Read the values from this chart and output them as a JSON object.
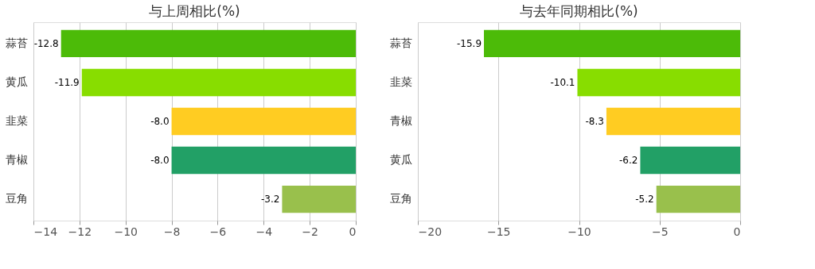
{
  "chart_data": [
    {
      "type": "bar",
      "orientation": "horizontal",
      "title": "与上周相比(%)",
      "categories": [
        "蒜苔",
        "黄瓜",
        "韭菜",
        "青椒",
        "豆角"
      ],
      "values": [
        -12.8,
        -11.9,
        -8.0,
        -8.0,
        -3.2
      ],
      "value_labels": [
        "-12.8",
        "-11.9",
        "-8.0",
        "-8.0",
        "-3.2"
      ],
      "colors": [
        "#4cbb08",
        "#88dd00",
        "#ffcc22",
        "#22a066",
        "#99c04c"
      ],
      "xlim": [
        -14,
        0
      ],
      "xticks": [
        -14,
        -12,
        -10,
        -8,
        -6,
        -4,
        -2,
        0
      ],
      "grid": "x"
    },
    {
      "type": "bar",
      "orientation": "horizontal",
      "title": "与去年同期相比(%)",
      "categories": [
        "蒜苔",
        "韭菜",
        "青椒",
        "黄瓜",
        "豆角"
      ],
      "values": [
        -15.9,
        -10.1,
        -8.3,
        -6.2,
        -5.2
      ],
      "value_labels": [
        "-15.9",
        "-10.1",
        "-8.3",
        "-6.2",
        "-5.2"
      ],
      "colors": [
        "#4cbb08",
        "#88dd00",
        "#ffcc22",
        "#22a066",
        "#99c04c"
      ],
      "xlim": [
        -20,
        0
      ],
      "xticks": [
        -20,
        -15,
        -10,
        -5,
        0
      ],
      "grid": "x"
    }
  ]
}
